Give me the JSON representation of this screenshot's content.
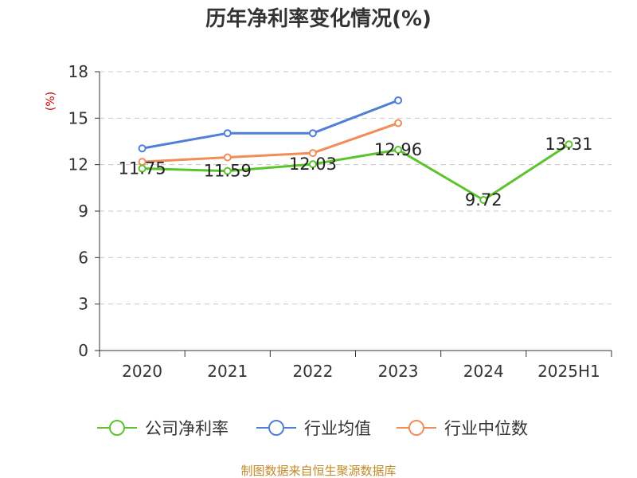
{
  "chart_data": {
    "type": "line",
    "title": "历年净利率变化情况(%)",
    "ylabel": "(%)",
    "xlabel": "",
    "ylim": [
      0,
      18
    ],
    "yticks": [
      0,
      3,
      6,
      9,
      12,
      15,
      18
    ],
    "grid": true,
    "legend_position": "bottom",
    "categories": [
      "2020",
      "2021",
      "2022",
      "2023",
      "2024",
      "2025H1"
    ],
    "series": [
      {
        "name": "公司净利率",
        "color": "#5cc42b",
        "values": [
          11.75,
          11.59,
          12.03,
          12.96,
          9.72,
          13.31
        ],
        "labels": [
          "11.75",
          "11.59",
          "12.03",
          "12.96",
          "9.72",
          "13.31"
        ]
      },
      {
        "name": "行业均值",
        "color": "#4f7fd6",
        "values": [
          13.05,
          14.03,
          14.03,
          16.15,
          null,
          null
        ]
      },
      {
        "name": "行业中位数",
        "color": "#f28c58",
        "values": [
          12.18,
          12.47,
          12.75,
          14.68,
          null,
          null
        ]
      }
    ]
  },
  "source": "制图数据来自恒生聚源数据库"
}
